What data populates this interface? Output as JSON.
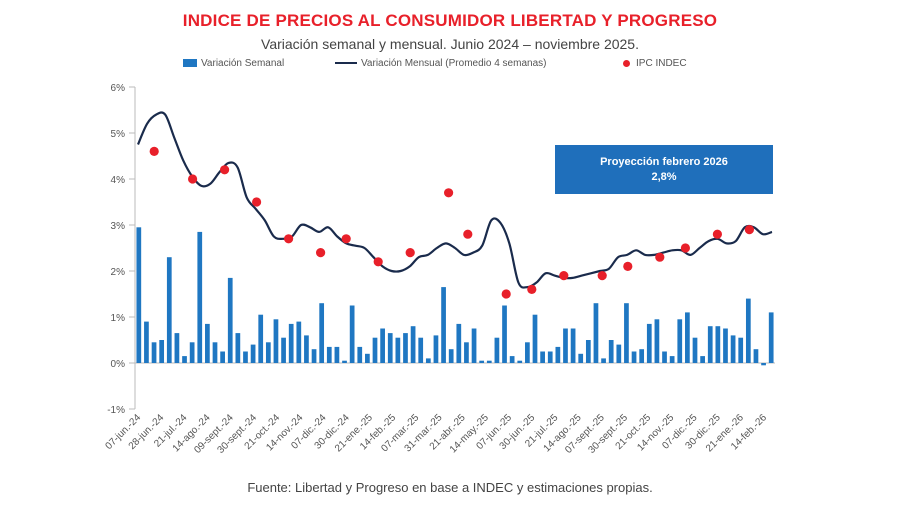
{
  "chart_data": {
    "type": "bar",
    "title": "INDICE DE PRECIOS AL CONSUMIDOR LIBERTAD Y PROGRESO",
    "subtitle": "Variación semanal y mensual. Junio 2024 – noviembre 2025.",
    "source": "Fuente: Libertad y Progreso en base a INDEC y estimaciones propias.",
    "ylim": [
      -1,
      6
    ],
    "y_ticks": [
      -1,
      0,
      1,
      2,
      3,
      4,
      5,
      6
    ],
    "y_tick_labels": [
      "-1%",
      "0%",
      "1%",
      "2%",
      "3%",
      "4%",
      "5%",
      "6%"
    ],
    "x_tick_labels": [
      "07-jun.-24",
      "28-jun.-24",
      "21-jul.-24",
      "14-ago.-24",
      "09-sept.-24",
      "30-sept.-24",
      "21-oct.-24",
      "14-nov.-24",
      "07-dic.-24",
      "30-dic.-24",
      "21-ene.-25",
      "14-feb.-25",
      "07-mar.-25",
      "31-mar.-25",
      "21-abr.-25",
      "14-may.-25",
      "07-jun.-25",
      "30-jun.-25",
      "21-jul.-25",
      "14-ago.-25",
      "07-sept.-25",
      "30-sept.-25",
      "21-oct.-25",
      "14-nov.-25",
      "07-dic.-25",
      "30-dic.-25",
      "21-ene.-26",
      "14-feb.-26"
    ],
    "legend": [
      "Variación Semanal",
      "Variación Mensual (Promedio 4 semanas)",
      "IPC INDEC"
    ],
    "series": [
      {
        "name": "Variación Semanal",
        "kind": "bar",
        "color": "#1f77c2",
        "values": [
          2.95,
          0.9,
          0.45,
          0.5,
          2.3,
          0.65,
          0.15,
          0.45,
          2.85,
          0.85,
          0.45,
          0.25,
          1.85,
          0.65,
          0.25,
          0.4,
          1.05,
          0.45,
          0.95,
          0.55,
          0.85,
          0.9,
          0.6,
          0.3,
          1.3,
          0.35,
          0.35,
          0.05,
          1.25,
          0.35,
          0.2,
          0.55,
          0.75,
          0.65,
          0.55,
          0.65,
          0.8,
          0.55,
          0.1,
          0.6,
          1.65,
          0.3,
          0.85,
          0.45,
          0.75,
          0.05,
          0.05,
          0.55,
          1.25,
          0.15,
          0.05,
          0.45,
          1.05,
          0.25,
          0.25,
          0.35,
          0.75,
          0.75,
          0.2,
          0.5,
          1.3,
          0.1,
          0.5,
          0.4,
          1.3,
          0.25,
          0.3,
          0.85,
          0.95,
          0.25,
          0.15,
          0.95,
          1.1,
          0.55,
          0.15,
          0.8,
          0.8,
          0.75,
          0.6,
          0.55,
          1.4,
          0.3,
          -0.05,
          1.1
        ]
      },
      {
        "name": "Variación Mensual (Promedio 4 semanas)",
        "kind": "line",
        "color": "#1a2b4c",
        "values": [
          4.75,
          5.2,
          5.4,
          5.4,
          4.9,
          4.4,
          4.05,
          3.85,
          3.9,
          4.15,
          4.35,
          4.25,
          3.6,
          3.35,
          3.1,
          2.75,
          2.7,
          2.75,
          3.0,
          2.95,
          2.85,
          2.95,
          2.75,
          2.6,
          2.55,
          2.5,
          2.3,
          2.1,
          2.0,
          2.0,
          2.1,
          2.3,
          2.35,
          2.5,
          2.6,
          2.5,
          2.35,
          2.4,
          2.55,
          3.1,
          3.05,
          2.6,
          1.75,
          1.65,
          1.75,
          1.95,
          1.9,
          1.85,
          1.85,
          1.9,
          1.95,
          2.0,
          2.05,
          2.3,
          2.35,
          2.45,
          2.35,
          2.35,
          2.4,
          2.45,
          2.45,
          2.35,
          2.5,
          2.65,
          2.7,
          2.6,
          2.65,
          2.95,
          2.95,
          2.8,
          2.85
        ]
      },
      {
        "name": "IPC INDEC",
        "kind": "scatter",
        "color": "#e8202a",
        "points": [
          [
            0.03,
            4.6
          ],
          [
            0.09,
            4.0
          ],
          [
            0.14,
            4.2
          ],
          [
            0.19,
            3.5
          ],
          [
            0.24,
            2.7
          ],
          [
            0.29,
            2.4
          ],
          [
            0.33,
            2.7
          ],
          [
            0.38,
            2.2
          ],
          [
            0.43,
            2.4
          ],
          [
            0.49,
            3.7
          ],
          [
            0.52,
            2.8
          ],
          [
            0.58,
            1.5
          ],
          [
            0.62,
            1.6
          ],
          [
            0.67,
            1.9
          ],
          [
            0.73,
            1.9
          ],
          [
            0.77,
            2.1
          ],
          [
            0.82,
            2.3
          ],
          [
            0.86,
            2.5
          ],
          [
            0.91,
            2.8
          ],
          [
            0.96,
            2.9
          ]
        ]
      }
    ]
  },
  "projection": {
    "title": "Proyección febrero 2026",
    "value": "2,8%"
  }
}
